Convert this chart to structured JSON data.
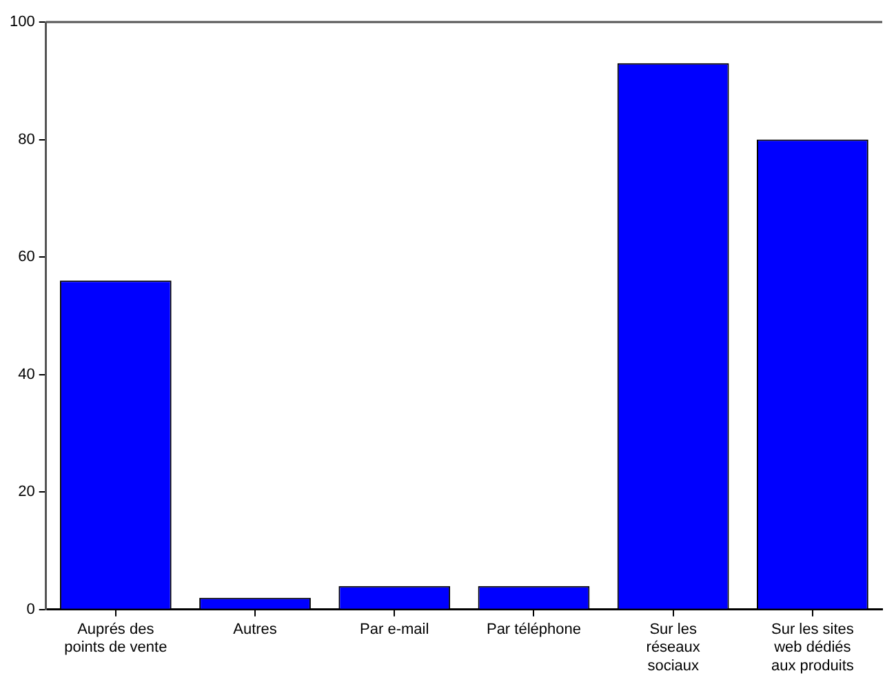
{
  "chart_data": {
    "type": "bar",
    "categories": [
      "Auprés des\npoints de vente",
      "Autres",
      "Par e-mail",
      "Par téléphone",
      "Sur les\nréseaux\nsociaux",
      "Sur les sites\nweb dédiés\naux produits"
    ],
    "values": [
      56,
      2,
      4,
      4,
      93,
      80
    ],
    "color": "#0000ff",
    "ylim": [
      0,
      100
    ],
    "yticks": [
      0,
      20,
      40,
      60,
      80,
      100
    ],
    "grid": false,
    "legend": false
  }
}
